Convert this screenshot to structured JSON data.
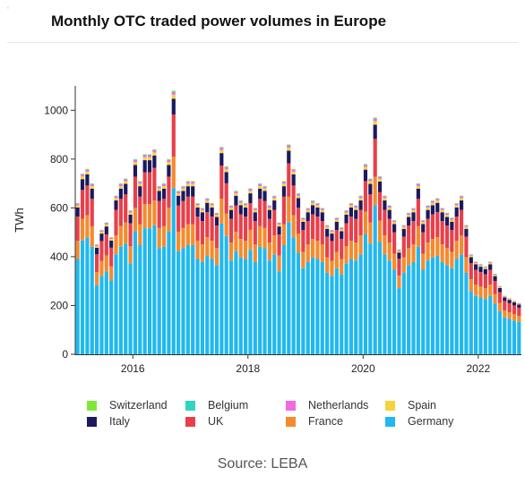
{
  "header": {
    "corner_mark": "‘",
    "title": "Monthly OTC traded power volumes in Europe"
  },
  "footer": {
    "source": "Source: LEBA"
  },
  "chart_data": {
    "type": "bar",
    "stacked": true,
    "title": "Monthly OTC traded power volumes in Europe",
    "xlabel": "",
    "ylabel": "TWh",
    "ylim": [
      0,
      1100
    ],
    "yticks": [
      0,
      200,
      400,
      600,
      800,
      1000
    ],
    "xticks": [
      2016,
      2018,
      2020,
      2022
    ],
    "x_start": 2015.0,
    "x_step": 0.08333,
    "grid": false,
    "legend_position": "bottom",
    "series_colors": {
      "Germany": "#21b8ef",
      "France": "#f58b2e",
      "UK": "#e8404a",
      "Italy": "#1c1960",
      "Spain": "#f5d43a",
      "Netherlands": "#f06ce0",
      "Belgium": "#2fd6c0",
      "Switzerland": "#7ee83a"
    },
    "legend": [
      "Switzerland",
      "Belgium",
      "Netherlands",
      "Spain",
      "Italy",
      "UK",
      "France",
      "Germany"
    ],
    "totals": [
      620,
      740,
      760,
      700,
      450,
      510,
      540,
      480,
      650,
      700,
      720,
      590,
      800,
      710,
      820,
      820,
      840,
      690,
      700,
      800,
      1080,
      670,
      690,
      710,
      710,
      620,
      600,
      640,
      620,
      580,
      850,
      770,
      610,
      670,
      630,
      620,
      680,
      600,
      700,
      690,
      610,
      650,
      540,
      710,
      860,
      760,
      660,
      560,
      600,
      630,
      620,
      600,
      530,
      510,
      560,
      520,
      590,
      620,
      610,
      650,
      780,
      720,
      970,
      730,
      650,
      610,
      550,
      430,
      530,
      580,
      600,
      700,
      550,
      610,
      630,
      640,
      600,
      580,
      560,
      620,
      650,
      530,
      410,
      380,
      370,
      360,
      380,
      330,
      280,
      240,
      230,
      220,
      210
    ],
    "germany_share": 0.63,
    "series": [
      {
        "name": "Germany",
        "share": 0.63
      },
      {
        "name": "France",
        "share": 0.12
      },
      {
        "name": "UK",
        "share": 0.16
      },
      {
        "name": "Italy",
        "share": 0.06
      },
      {
        "name": "Spain",
        "share": 0.015
      },
      {
        "name": "Netherlands",
        "share": 0.01
      },
      {
        "name": "Belgium",
        "share": 0.003
      },
      {
        "name": "Switzerland",
        "share": 0.002
      }
    ]
  }
}
